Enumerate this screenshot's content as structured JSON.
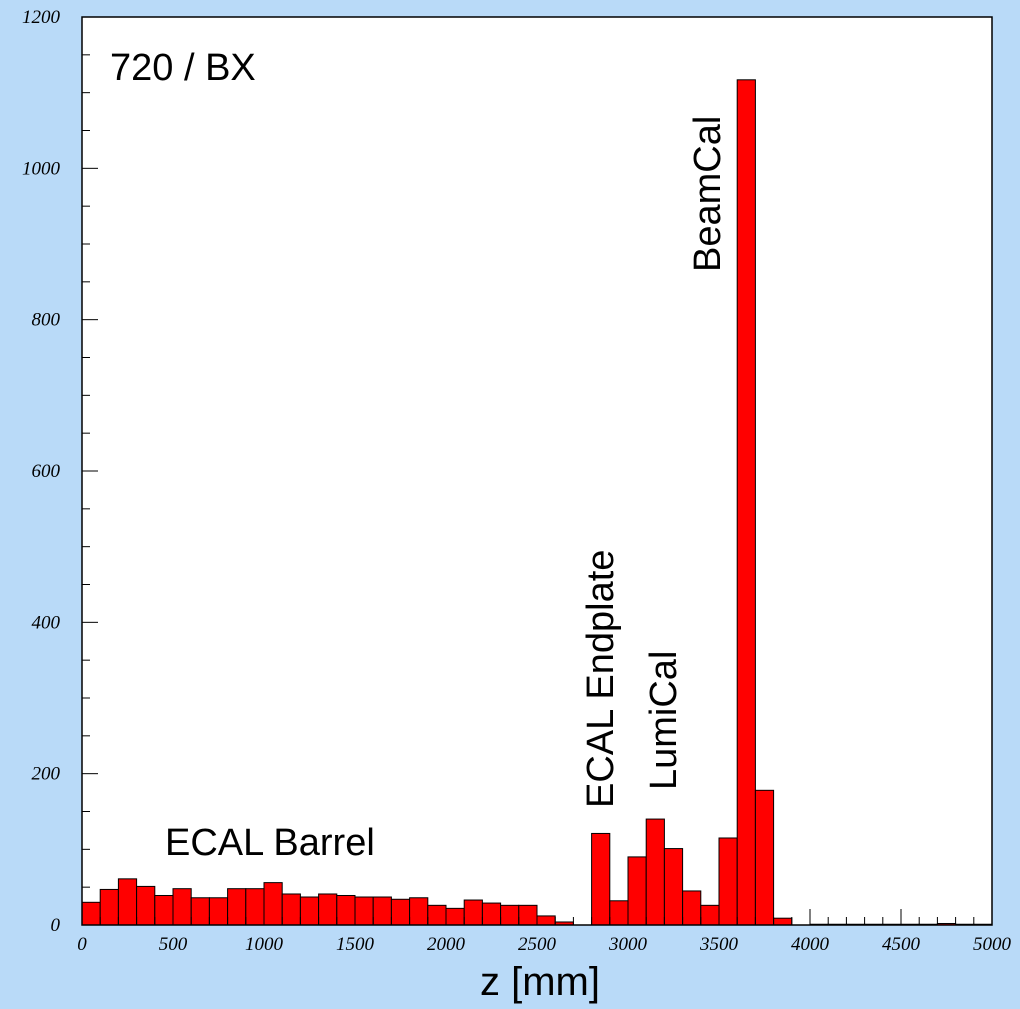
{
  "chart_data": {
    "type": "bar",
    "title": "",
    "xlabel": "z [mm]",
    "ylabel": "",
    "xlim": [
      0,
      5000
    ],
    "ylim": [
      0,
      1200
    ],
    "grid": false,
    "bin_width": 100,
    "x_ticks": [
      "0",
      "500",
      "1000",
      "1500",
      "2000",
      "2500",
      "3000",
      "3500",
      "4000",
      "4500",
      "5000"
    ],
    "y_ticks": [
      "0",
      "200",
      "400",
      "600",
      "800",
      "1000",
      "1200"
    ],
    "x": [
      0,
      100,
      200,
      300,
      400,
      500,
      600,
      700,
      800,
      900,
      1000,
      1100,
      1200,
      1300,
      1400,
      1500,
      1600,
      1700,
      1800,
      1900,
      2000,
      2100,
      2200,
      2300,
      2400,
      2500,
      2600,
      2700,
      2800,
      2900,
      3000,
      3100,
      3200,
      3300,
      3400,
      3500,
      3600,
      3700,
      3800,
      3900,
      4000,
      4100,
      4200,
      4300,
      4400,
      4500,
      4600,
      4700,
      4800,
      4900
    ],
    "values": [
      30,
      47,
      61,
      51,
      39,
      48,
      36,
      36,
      48,
      48,
      56,
      41,
      37,
      41,
      39,
      37,
      37,
      34,
      36,
      26,
      22,
      33,
      29,
      26,
      26,
      12,
      4,
      0,
      121,
      32,
      90,
      140,
      101,
      45,
      26,
      115,
      1117,
      178,
      9,
      0,
      1,
      1,
      1,
      1,
      1,
      1,
      1,
      2,
      1,
      1
    ],
    "annotations": [
      {
        "text": "720 / BX"
      },
      {
        "text": "ECAL Barrel"
      },
      {
        "text": "ECAL Endplate"
      },
      {
        "text": "LumiCal"
      },
      {
        "text": "BeamCal"
      }
    ],
    "colors": {
      "background": "#b9daf8",
      "plot_area": "#ffffff",
      "bars": "#ff0000"
    }
  }
}
